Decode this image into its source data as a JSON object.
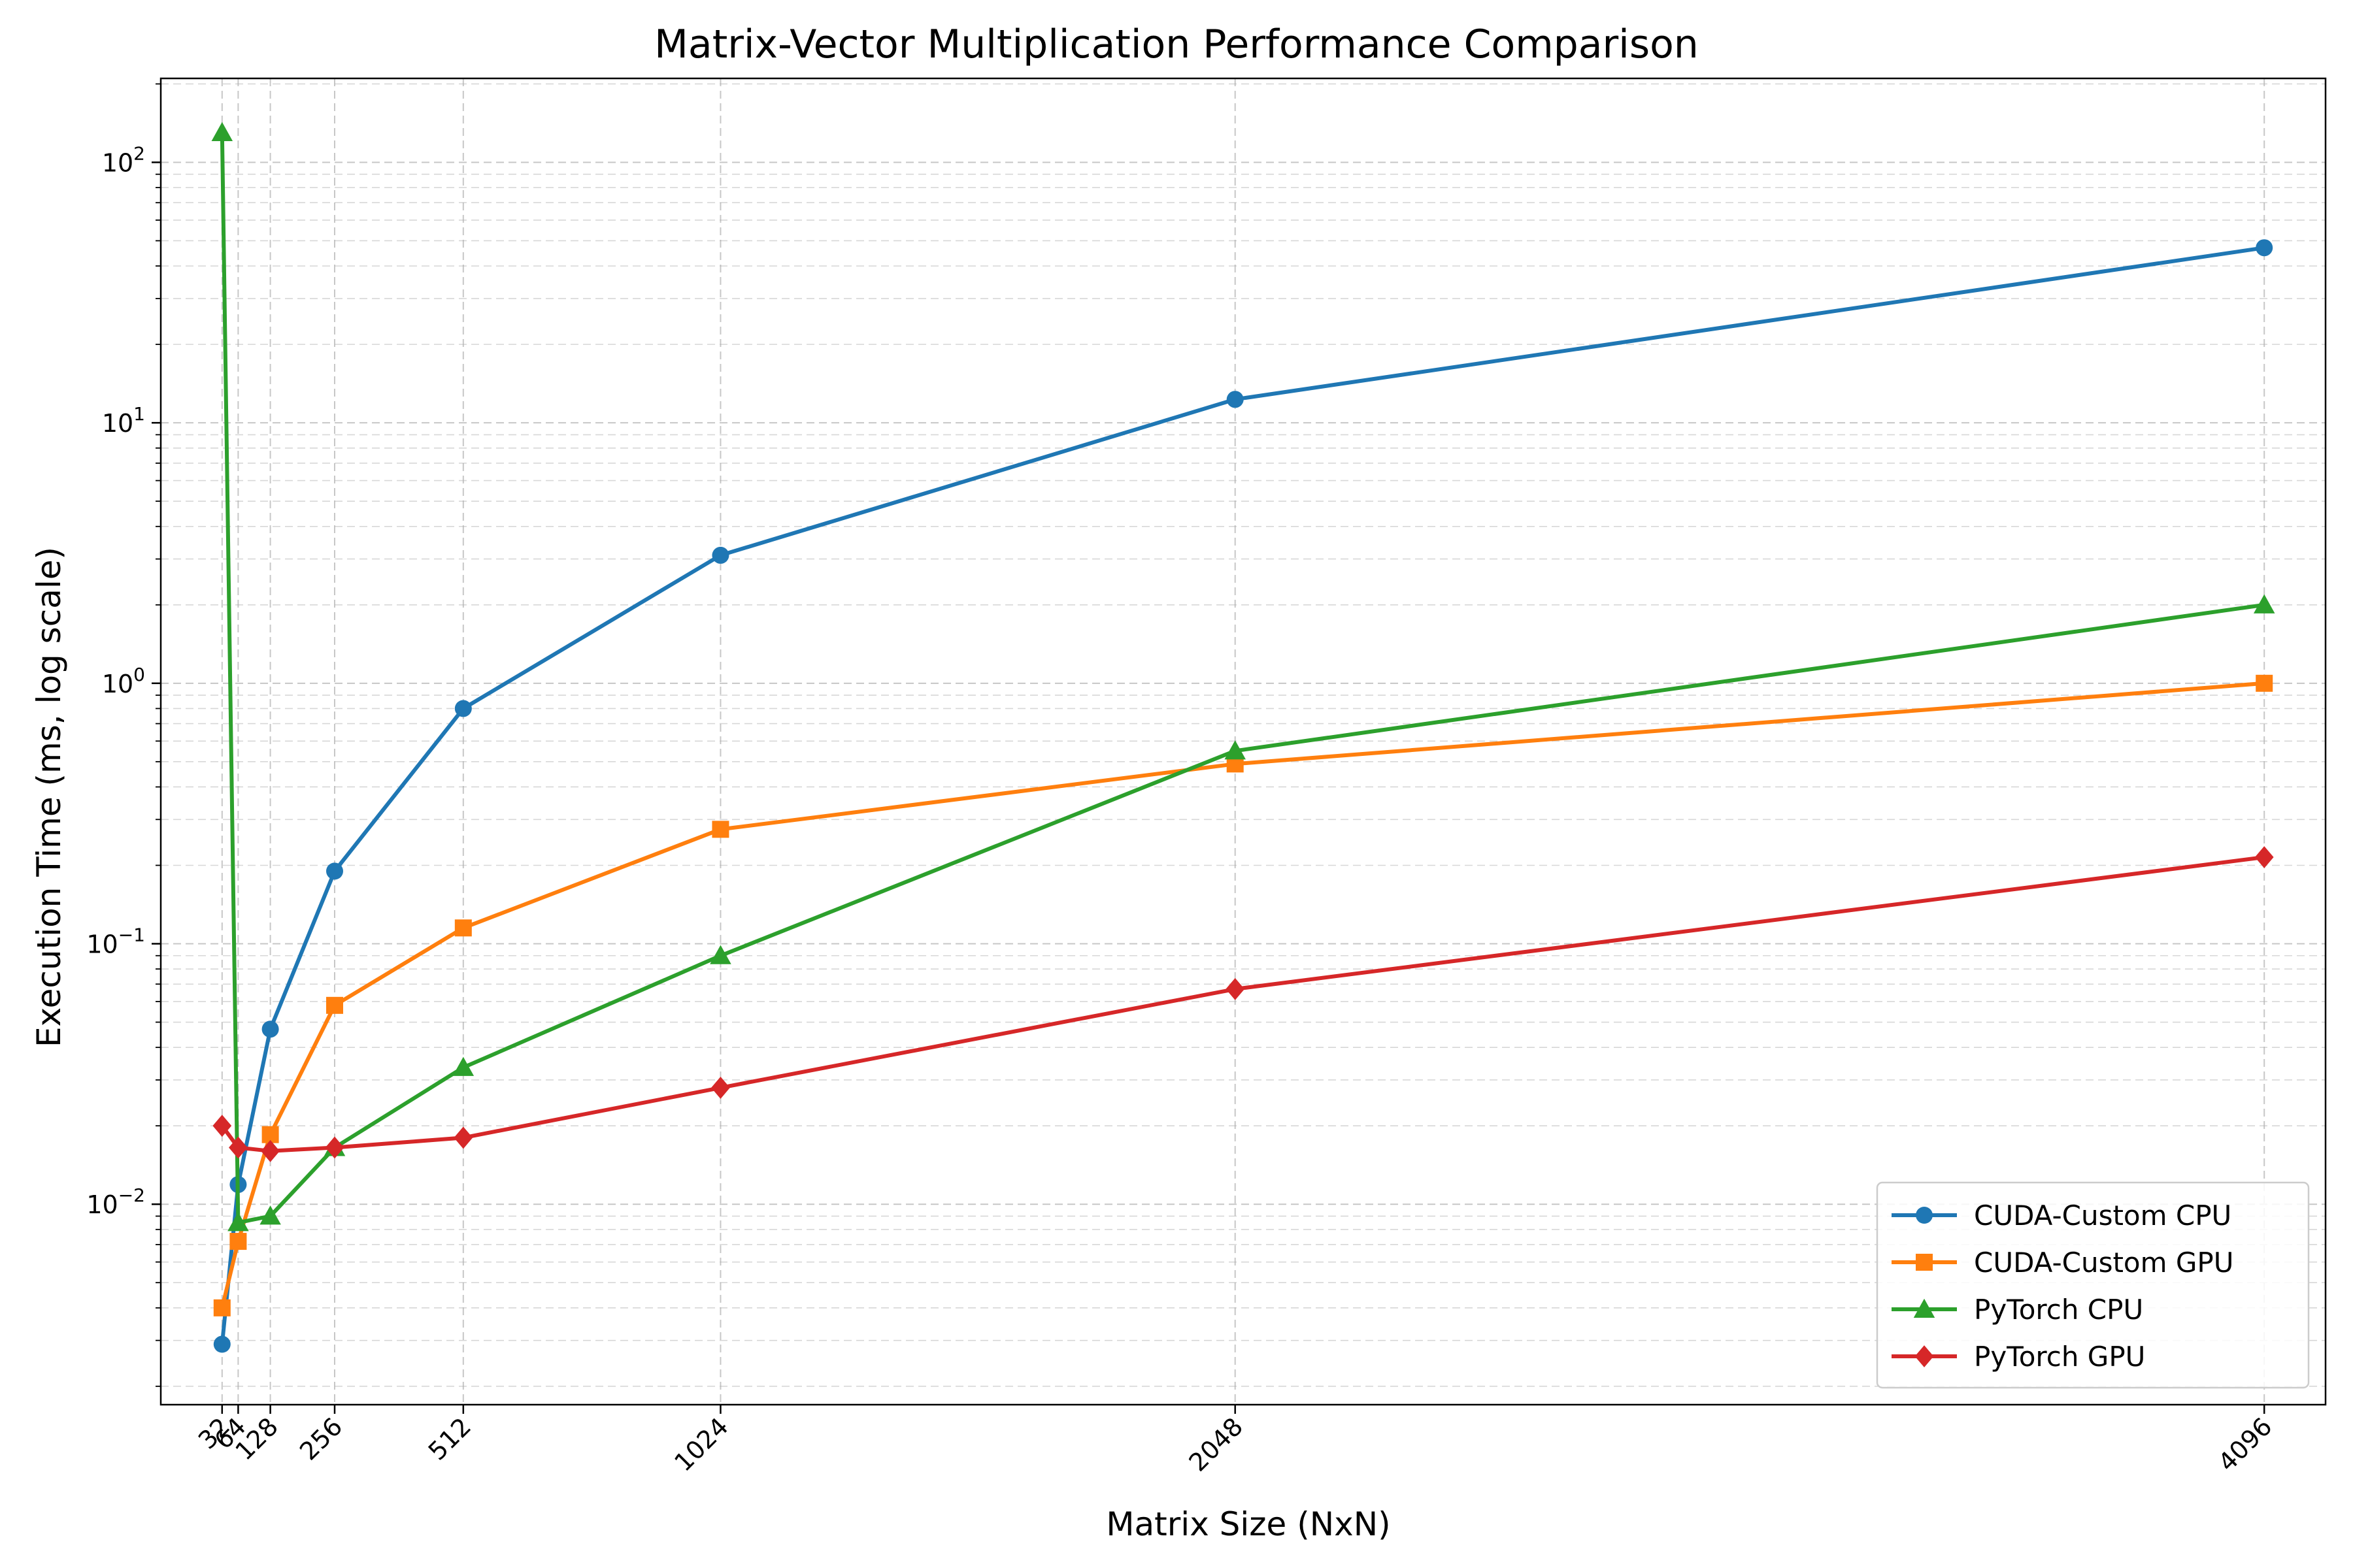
{
  "chart_data": {
    "type": "line",
    "title": "Matrix-Vector Multiplication Performance Comparison",
    "xlabel": "Matrix Size (NxN)",
    "ylabel": "Execution Time (ms, log scale)",
    "x": [
      32,
      64,
      128,
      256,
      512,
      1024,
      2048,
      4096
    ],
    "x_tick_labels": [
      "32",
      "64",
      "128",
      "256",
      "512",
      "1024",
      "2048",
      "4096"
    ],
    "xlim": [
      -90,
      4218
    ],
    "y_scale": "log",
    "ylim": [
      0.0017,
      210
    ],
    "y_ticks": [
      0.01,
      0.1,
      1,
      10,
      100
    ],
    "y_tick_exponents": [
      "-2",
      "-1",
      "0",
      "1",
      "2"
    ],
    "y_tick_base": "10",
    "grid": true,
    "legend_position": "lower right",
    "series": [
      {
        "name": "CUDA-Custom CPU",
        "color": "#1f77b4",
        "marker": "circle",
        "values": [
          0.0029,
          0.0119,
          0.047,
          0.19,
          0.8,
          3.1,
          12.3,
          47.0
        ]
      },
      {
        "name": "CUDA-Custom GPU",
        "color": "#ff7f0e",
        "marker": "square",
        "values": [
          0.004,
          0.0072,
          0.0185,
          0.058,
          0.115,
          0.275,
          0.49,
          1.0
        ]
      },
      {
        "name": "PyTorch CPU",
        "color": "#2ca02c",
        "marker": "triangle",
        "values": [
          130,
          0.0085,
          0.009,
          0.0165,
          0.0335,
          0.09,
          0.55,
          2.0
        ]
      },
      {
        "name": "PyTorch GPU",
        "color": "#d62728",
        "marker": "diamond",
        "values": [
          0.02,
          0.0165,
          0.016,
          0.0165,
          0.018,
          0.028,
          0.067,
          0.215
        ]
      }
    ]
  }
}
